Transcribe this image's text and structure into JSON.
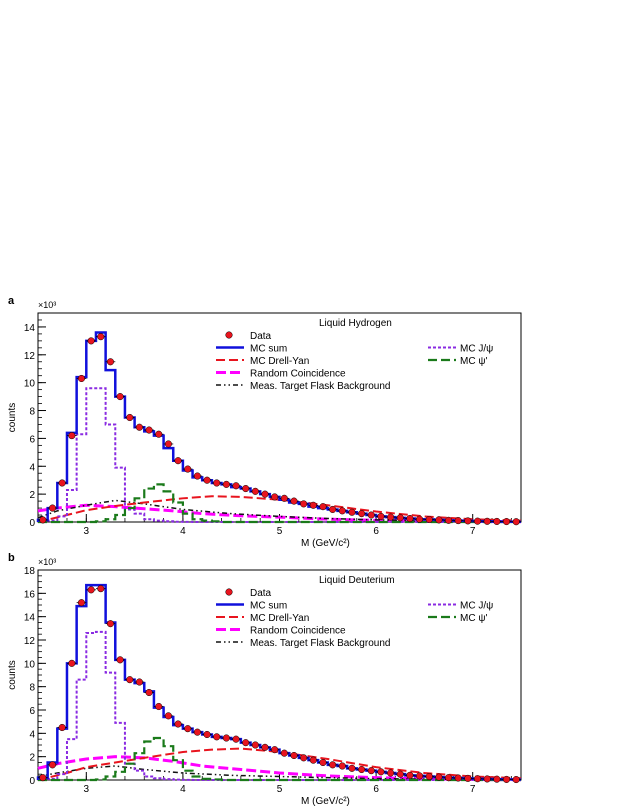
{
  "chart_data": [
    {
      "panel": "a",
      "type": "histogram",
      "title": "Liquid Hydrogen",
      "xlabel": "M (GeV/c²)",
      "ylabel": "counts",
      "y_multiplier": "×10³",
      "xlim": [
        2.5,
        7.5
      ],
      "ylim": [
        0,
        15
      ],
      "x_ticks": [
        3,
        4,
        5,
        6,
        7
      ],
      "y_ticks": [
        0,
        2,
        4,
        6,
        8,
        10,
        12,
        14
      ],
      "legend": {
        "data": "Data",
        "mc_sum": "MC sum",
        "drell_yan": "MC Drell-Yan",
        "random": "Random Coincidence",
        "flask": "Meas. Target Flask Background",
        "jpsi": "MC J/ψ",
        "psip": "MC ψ'"
      },
      "bin_width": 0.1,
      "bin_centers": [
        2.55,
        2.65,
        2.75,
        2.85,
        2.95,
        3.05,
        3.15,
        3.25,
        3.35,
        3.45,
        3.55,
        3.65,
        3.75,
        3.85,
        3.95,
        4.05,
        4.15,
        4.25,
        4.35,
        4.45,
        4.55,
        4.65,
        4.75,
        4.85,
        4.95,
        5.05,
        5.15,
        5.25,
        5.35,
        5.45,
        5.55,
        5.65,
        5.75,
        5.85,
        5.95,
        6.05,
        6.15,
        6.25,
        6.35,
        6.45,
        6.55,
        6.65,
        6.75,
        6.85,
        6.95,
        7.05,
        7.15,
        7.25,
        7.35,
        7.45
      ],
      "series": [
        {
          "key": "data",
          "name": "Data",
          "color": "#e8141e",
          "values": [
            0.15,
            1.0,
            2.8,
            6.2,
            10.3,
            13.0,
            13.3,
            11.5,
            9.0,
            7.5,
            6.8,
            6.6,
            6.3,
            5.6,
            4.4,
            3.8,
            3.3,
            3.0,
            2.8,
            2.7,
            2.6,
            2.4,
            2.2,
            2.0,
            1.8,
            1.7,
            1.5,
            1.3,
            1.2,
            1.1,
            0.9,
            0.8,
            0.7,
            0.6,
            0.5,
            0.4,
            0.35,
            0.3,
            0.25,
            0.2,
            0.18,
            0.15,
            0.12,
            0.1,
            0.08,
            0.06,
            0.05,
            0.04,
            0.03,
            0.02
          ]
        },
        {
          "key": "mc_sum",
          "name": "MC sum",
          "color": "#1010dc",
          "values": [
            0.15,
            1.0,
            2.8,
            6.4,
            10.4,
            13.0,
            13.6,
            10.9,
            9.0,
            7.5,
            6.8,
            6.5,
            6.2,
            5.3,
            4.4,
            3.7,
            3.2,
            3.0,
            2.8,
            2.7,
            2.5,
            2.4,
            2.2,
            2.0,
            1.8,
            1.6,
            1.4,
            1.3,
            1.1,
            1.0,
            0.9,
            0.8,
            0.7,
            0.6,
            0.5,
            0.4,
            0.35,
            0.3,
            0.25,
            0.2,
            0.18,
            0.15,
            0.12,
            0.1,
            0.08,
            0.06,
            0.05,
            0.04,
            0.03,
            0.02
          ]
        },
        {
          "key": "jpsi",
          "name": "MC J/ψ",
          "color": "#8a2be2",
          "values": [
            0.0,
            0.1,
            0.4,
            2.3,
            6.3,
            9.6,
            9.6,
            7.0,
            3.9,
            0.9,
            0.6,
            0.2,
            0.1,
            0.05,
            0.02,
            0.01,
            0,
            0,
            0,
            0,
            0,
            0,
            0,
            0,
            0,
            0,
            0,
            0,
            0,
            0,
            0,
            0,
            0,
            0,
            0,
            0,
            0,
            0,
            0,
            0,
            0,
            0,
            0,
            0,
            0,
            0,
            0,
            0,
            0,
            0
          ]
        },
        {
          "key": "psip",
          "name": "MC ψ'",
          "color": "#1a7a1a",
          "values": [
            0,
            0,
            0,
            0,
            0,
            0,
            0.05,
            0.2,
            0.5,
            1.0,
            1.7,
            2.4,
            2.7,
            2.2,
            1.4,
            0.6,
            0.2,
            0.1,
            0.05,
            0,
            0,
            0,
            0,
            0,
            0,
            0,
            0,
            0,
            0,
            0,
            0,
            0,
            0,
            0,
            0,
            0,
            0,
            0,
            0,
            0,
            0,
            0,
            0,
            0,
            0,
            0,
            0,
            0,
            0,
            0
          ]
        },
        {
          "key": "drell_yan",
          "name": "MC Drell-Yan",
          "color": "#e8141e",
          "x": [
            2.5,
            2.8,
            3.0,
            3.3,
            3.6,
            4.0,
            4.3,
            4.6,
            5.0,
            5.5,
            6.0,
            6.5,
            7.0,
            7.5
          ],
          "values": [
            0.0,
            0.5,
            0.85,
            1.15,
            1.4,
            1.7,
            1.85,
            1.8,
            1.6,
            1.2,
            0.75,
            0.4,
            0.2,
            0.1
          ]
        },
        {
          "key": "random",
          "name": "Random Coincidence",
          "color": "#ff00ff",
          "x": [
            2.5,
            2.7,
            3.0,
            3.3,
            3.6,
            3.9,
            4.2,
            4.6,
            5.0,
            5.5,
            6.0,
            6.5,
            7.0,
            7.5
          ],
          "values": [
            0.8,
            1.0,
            1.2,
            1.1,
            0.95,
            0.8,
            0.6,
            0.45,
            0.35,
            0.2,
            0.12,
            0.07,
            0.04,
            0.02
          ]
        },
        {
          "key": "flask",
          "name": "Meas. Target Flask Background",
          "color": "#111111",
          "x": [
            2.5,
            2.7,
            3.0,
            3.3,
            3.6,
            4.0,
            4.5,
            5.0,
            5.5,
            6.0,
            6.5,
            7.0,
            7.5
          ],
          "values": [
            0.3,
            0.8,
            1.2,
            1.55,
            1.3,
            0.9,
            0.6,
            0.4,
            0.25,
            0.15,
            0.1,
            0.05,
            0.02
          ]
        }
      ]
    },
    {
      "panel": "b",
      "type": "histogram",
      "title": "Liquid Deuterium",
      "xlabel": "M (GeV/c²)",
      "ylabel": "counts",
      "y_multiplier": "×10³",
      "xlim": [
        2.5,
        7.5
      ],
      "ylim": [
        0,
        18
      ],
      "x_ticks": [
        3,
        4,
        5,
        6,
        7
      ],
      "y_ticks": [
        0,
        2,
        4,
        6,
        8,
        10,
        12,
        14,
        16,
        18
      ],
      "legend": {
        "data": "Data",
        "mc_sum": "MC sum",
        "drell_yan": "MC Drell-Yan",
        "random": "Random Coincidence",
        "flask": "Meas. Target Flask Background",
        "jpsi": "MC J/ψ",
        "psip": "MC ψ'"
      },
      "bin_width": 0.1,
      "bin_centers": [
        2.55,
        2.65,
        2.75,
        2.85,
        2.95,
        3.05,
        3.15,
        3.25,
        3.35,
        3.45,
        3.55,
        3.65,
        3.75,
        3.85,
        3.95,
        4.05,
        4.15,
        4.25,
        4.35,
        4.45,
        4.55,
        4.65,
        4.75,
        4.85,
        4.95,
        5.05,
        5.15,
        5.25,
        5.35,
        5.45,
        5.55,
        5.65,
        5.75,
        5.85,
        5.95,
        6.05,
        6.15,
        6.25,
        6.35,
        6.45,
        6.55,
        6.65,
        6.75,
        6.85,
        6.95,
        7.05,
        7.15,
        7.25,
        7.35,
        7.45
      ],
      "series": [
        {
          "key": "data",
          "name": "Data",
          "color": "#e8141e",
          "values": [
            0.2,
            1.3,
            4.5,
            10.0,
            15.2,
            16.3,
            16.4,
            13.4,
            10.3,
            8.6,
            8.4,
            7.5,
            6.3,
            5.5,
            4.8,
            4.4,
            4.1,
            3.9,
            3.7,
            3.6,
            3.5,
            3.2,
            3.0,
            2.8,
            2.6,
            2.3,
            2.1,
            1.9,
            1.7,
            1.5,
            1.3,
            1.2,
            1.0,
            0.9,
            0.8,
            0.7,
            0.6,
            0.5,
            0.4,
            0.35,
            0.3,
            0.25,
            0.2,
            0.17,
            0.14,
            0.11,
            0.09,
            0.07,
            0.05,
            0.04
          ]
        },
        {
          "key": "mc_sum",
          "name": "MC sum",
          "color": "#1010dc",
          "values": [
            0.2,
            1.5,
            4.4,
            10.0,
            14.9,
            16.7,
            16.7,
            13.5,
            10.3,
            8.6,
            8.3,
            7.6,
            6.2,
            5.4,
            4.7,
            4.4,
            4.1,
            3.9,
            3.7,
            3.6,
            3.5,
            3.2,
            3.0,
            2.8,
            2.6,
            2.3,
            2.1,
            1.9,
            1.7,
            1.5,
            1.3,
            1.2,
            1.0,
            0.9,
            0.8,
            0.7,
            0.6,
            0.5,
            0.4,
            0.35,
            0.3,
            0.25,
            0.2,
            0.17,
            0.14,
            0.11,
            0.09,
            0.07,
            0.05,
            0.04
          ]
        },
        {
          "key": "jpsi",
          "name": "MC J/ψ",
          "color": "#8a2be2",
          "values": [
            0.0,
            0.1,
            0.5,
            3.5,
            8.6,
            12.6,
            12.7,
            9.2,
            4.9,
            1.4,
            0.8,
            0.3,
            0.15,
            0.07,
            0.03,
            0.01,
            0,
            0,
            0,
            0,
            0,
            0,
            0,
            0,
            0,
            0,
            0,
            0,
            0,
            0,
            0,
            0,
            0,
            0,
            0,
            0,
            0,
            0,
            0,
            0,
            0,
            0,
            0,
            0,
            0,
            0,
            0,
            0,
            0,
            0
          ]
        },
        {
          "key": "psip",
          "name": "MC ψ'",
          "color": "#1a7a1a",
          "values": [
            0,
            0,
            0,
            0,
            0,
            0,
            0.05,
            0.3,
            0.7,
            1.4,
            2.3,
            3.3,
            3.6,
            2.9,
            1.7,
            0.8,
            0.3,
            0.1,
            0.05,
            0,
            0,
            0,
            0,
            0,
            0,
            0,
            0,
            0,
            0,
            0,
            0,
            0,
            0,
            0,
            0,
            0,
            0,
            0,
            0,
            0,
            0,
            0,
            0,
            0,
            0,
            0,
            0,
            0,
            0,
            0
          ]
        },
        {
          "key": "drell_yan",
          "name": "MC Drell-Yan",
          "color": "#e8141e",
          "x": [
            2.5,
            2.8,
            3.0,
            3.3,
            3.6,
            4.0,
            4.3,
            4.6,
            5.0,
            5.5,
            6.0,
            6.5,
            7.0,
            7.5
          ],
          "values": [
            0.0,
            0.6,
            1.1,
            1.5,
            1.9,
            2.4,
            2.6,
            2.7,
            2.4,
            1.8,
            1.1,
            0.6,
            0.3,
            0.15
          ]
        },
        {
          "key": "random",
          "name": "Random Coincidence",
          "color": "#ff00ff",
          "x": [
            2.5,
            2.7,
            3.0,
            3.3,
            3.6,
            3.9,
            4.2,
            4.6,
            5.0,
            5.5,
            6.0,
            6.5,
            7.0,
            7.5
          ],
          "values": [
            1.0,
            1.4,
            1.8,
            2.0,
            1.9,
            1.6,
            1.2,
            0.9,
            0.6,
            0.35,
            0.2,
            0.1,
            0.05,
            0.02
          ]
        },
        {
          "key": "flask",
          "name": "Meas. Target Flask Background",
          "color": "#111111",
          "x": [
            2.5,
            2.7,
            3.0,
            3.3,
            3.6,
            4.0,
            4.5,
            5.0,
            5.5,
            6.0,
            6.5,
            7.0,
            7.5
          ],
          "values": [
            0.3,
            0.6,
            1.0,
            1.2,
            0.9,
            0.6,
            0.4,
            0.3,
            0.2,
            0.12,
            0.08,
            0.04,
            0.02
          ]
        }
      ]
    }
  ]
}
